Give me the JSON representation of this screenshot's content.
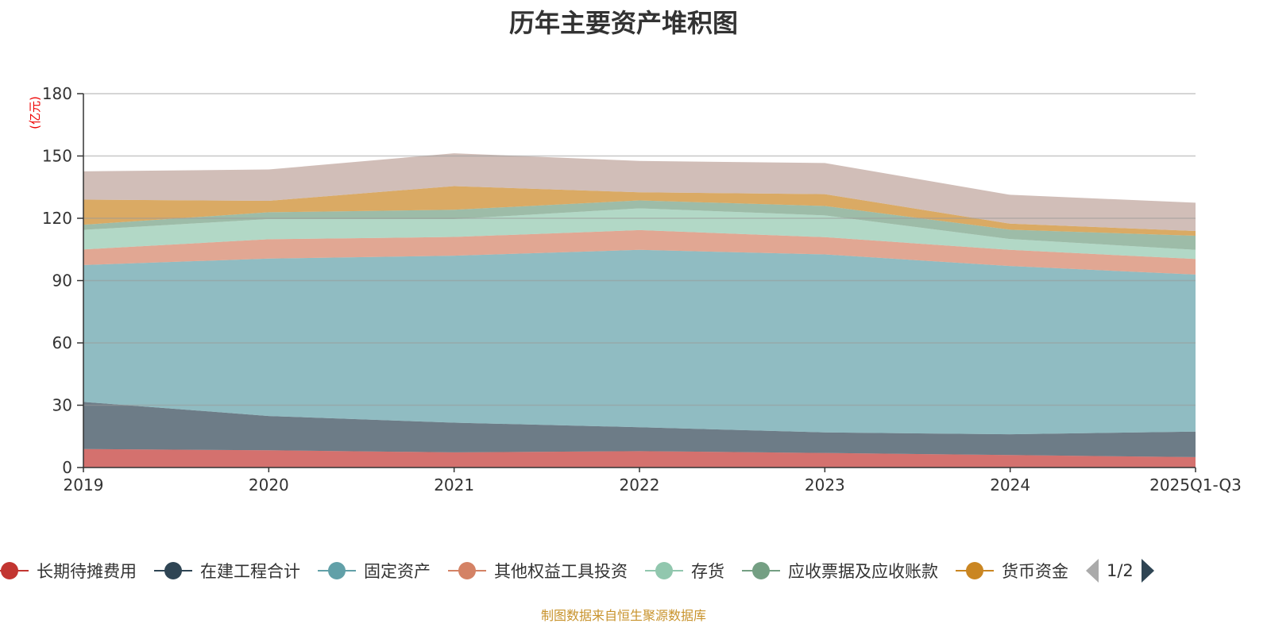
{
  "chart_data": {
    "type": "area",
    "stacked": true,
    "title": "历年主要资产堆积图",
    "ylabel": "(亿元)",
    "xlabel": "",
    "categories": [
      "2019",
      "2020",
      "2021",
      "2022",
      "2023",
      "2024",
      "2025Q1-Q3"
    ],
    "ylim": [
      0,
      180
    ],
    "yticks": [
      0,
      30,
      60,
      90,
      120,
      150,
      180
    ],
    "grid": true,
    "legend_position": "bottom",
    "series": [
      {
        "name": "长期待摊费用",
        "color": "#c23531",
        "values": [
          8.9,
          8.3,
          7.3,
          7.9,
          7.0,
          6.0,
          5.0
        ]
      },
      {
        "name": "在建工程合计",
        "color": "#2f4554",
        "values": [
          22.7,
          16.5,
          14.3,
          11.5,
          9.9,
          10.0,
          12.3
        ]
      },
      {
        "name": "固定资产",
        "color": "#61a0a8",
        "values": [
          65.9,
          75.8,
          80.4,
          85.4,
          85.7,
          81.0,
          75.6
        ]
      },
      {
        "name": "其他权益工具投资",
        "color": "#d48265",
        "values": [
          7.5,
          9.3,
          9.0,
          9.5,
          8.3,
          7.8,
          7.5
        ]
      },
      {
        "name": "存货",
        "color": "#91c7ae",
        "values": [
          9.4,
          9.7,
          8.6,
          10.5,
          10.5,
          5.2,
          4.4
        ]
      },
      {
        "name": "应收票据及应收账款",
        "color": "#749f83",
        "values": [
          2.5,
          3.3,
          4.5,
          3.8,
          4.5,
          4.5,
          6.8
        ]
      },
      {
        "name": "货币资金",
        "color": "#ca8622",
        "values": [
          12.1,
          5.5,
          11.4,
          3.9,
          5.7,
          2.9,
          2.3
        ]
      },
      {
        "color": "#bda29a",
        "values": [
          13.6,
          15.1,
          15.8,
          15.1,
          15.0,
          13.9,
          13.6
        ]
      }
    ]
  },
  "legend": {
    "page": "1/2",
    "prev_icon": "triangle-left",
    "next_icon": "triangle-right"
  },
  "footer": "制图数据来自恒生聚源数据库"
}
